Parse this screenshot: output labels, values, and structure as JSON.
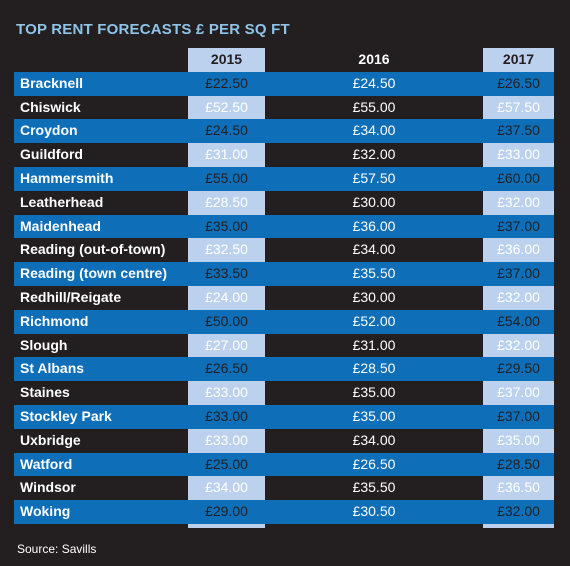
{
  "title": "TOP RENT FORECASTS £ PER SQ FT",
  "source": "Source: Savills",
  "colors": {
    "background": "#231f20",
    "stripe": "#0e6fb8",
    "highlight_column": "#bcd1ee",
    "title": "#8fc4e8"
  },
  "chart_data": {
    "type": "table",
    "title": "TOP RENT FORECASTS £ PER SQ FT",
    "columns": [
      "2015",
      "2016",
      "2017"
    ],
    "rows": [
      {
        "location": "Bracknell",
        "values": [
          "£22.50",
          "£24.50",
          "£26.50"
        ]
      },
      {
        "location": "Chiswick",
        "values": [
          "£52.50",
          "£55.00",
          "£57.50"
        ]
      },
      {
        "location": "Croydon",
        "values": [
          "£24.50",
          "£34.00",
          "£37.50"
        ]
      },
      {
        "location": "Guildford",
        "values": [
          "£31.00",
          "£32.00",
          "£33.00"
        ]
      },
      {
        "location": "Hammersmith",
        "values": [
          "£55.00",
          "£57.50",
          "£60.00"
        ]
      },
      {
        "location": "Leatherhead",
        "values": [
          "£28.50",
          "£30.00",
          "£32.00"
        ]
      },
      {
        "location": "Maidenhead",
        "values": [
          "£35.00",
          "£36.00",
          "£37.00"
        ]
      },
      {
        "location": "Reading (out-of-town)",
        "values": [
          "£32.50",
          "£34.00",
          "£36.00"
        ]
      },
      {
        "location": "Reading (town centre)",
        "values": [
          "£33.50",
          "£35.50",
          "£37.00"
        ]
      },
      {
        "location": "Redhill/Reigate",
        "values": [
          "£24.00",
          "£30.00",
          "£32.00"
        ]
      },
      {
        "location": "Richmond",
        "values": [
          "£50.00",
          "£52.00",
          "£54.00"
        ]
      },
      {
        "location": "Slough",
        "values": [
          "£27.00",
          "£31.00",
          "£32.00"
        ]
      },
      {
        "location": "St Albans",
        "values": [
          "£26.50",
          "£28.50",
          "£29.50"
        ]
      },
      {
        "location": "Staines",
        "values": [
          "£33.00",
          "£35.00",
          "£37.00"
        ]
      },
      {
        "location": "Stockley Park",
        "values": [
          "£33.00",
          "£35.00",
          "£37.00"
        ]
      },
      {
        "location": "Uxbridge",
        "values": [
          "£33.00",
          "£34.00",
          "£35.00"
        ]
      },
      {
        "location": "Watford",
        "values": [
          "£25.00",
          "£26.50",
          "£28.50"
        ]
      },
      {
        "location": "Windsor",
        "values": [
          "£34.00",
          "£35.50",
          "£36.50"
        ]
      },
      {
        "location": "Woking",
        "values": [
          "£29.00",
          "£30.50",
          "£32.00"
        ]
      }
    ]
  }
}
